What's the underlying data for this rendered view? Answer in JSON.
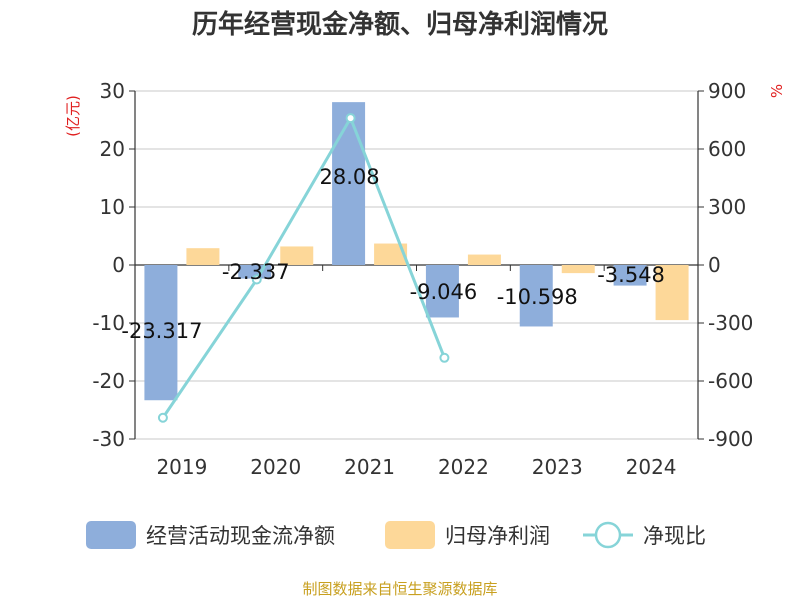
{
  "chart_data": {
    "type": "bar",
    "title": "历年经营现金净额、归母净利润情况",
    "categories": [
      "2019",
      "2020",
      "2021",
      "2022",
      "2023",
      "2024"
    ],
    "left_axis": {
      "unit": "(亿元)",
      "range": [
        -30,
        30
      ],
      "ticks": [
        30,
        20,
        10,
        0,
        -10,
        -20,
        -30
      ]
    },
    "right_axis": {
      "unit": "%",
      "range": [
        -900,
        900
      ],
      "ticks": [
        900,
        600,
        300,
        0,
        -300,
        -600,
        -900
      ]
    },
    "series": [
      {
        "name": "经营活动现金流净额",
        "type": "bar",
        "axis": "left",
        "color": "#8eaedb",
        "values": [
          -23.317,
          -2.337,
          28.08,
          -9.046,
          -10.598,
          -3.548
        ],
        "labels": [
          "-23.317",
          "-2.337",
          "28.08",
          "-9.046",
          "-10.598",
          "-3.548"
        ]
      },
      {
        "name": "归母净利润",
        "type": "bar",
        "axis": "left",
        "color": "#fdd899",
        "values": [
          2.9,
          3.2,
          3.7,
          1.8,
          -1.4,
          -9.5
        ]
      },
      {
        "name": "净现比",
        "type": "line",
        "axis": "right",
        "color": "#86d4d8",
        "values": [
          -790,
          -75,
          760,
          -480,
          null,
          null
        ]
      }
    ],
    "grid": true,
    "legend_position": "bottom"
  },
  "source": "制图数据来自恒生聚源数据库"
}
